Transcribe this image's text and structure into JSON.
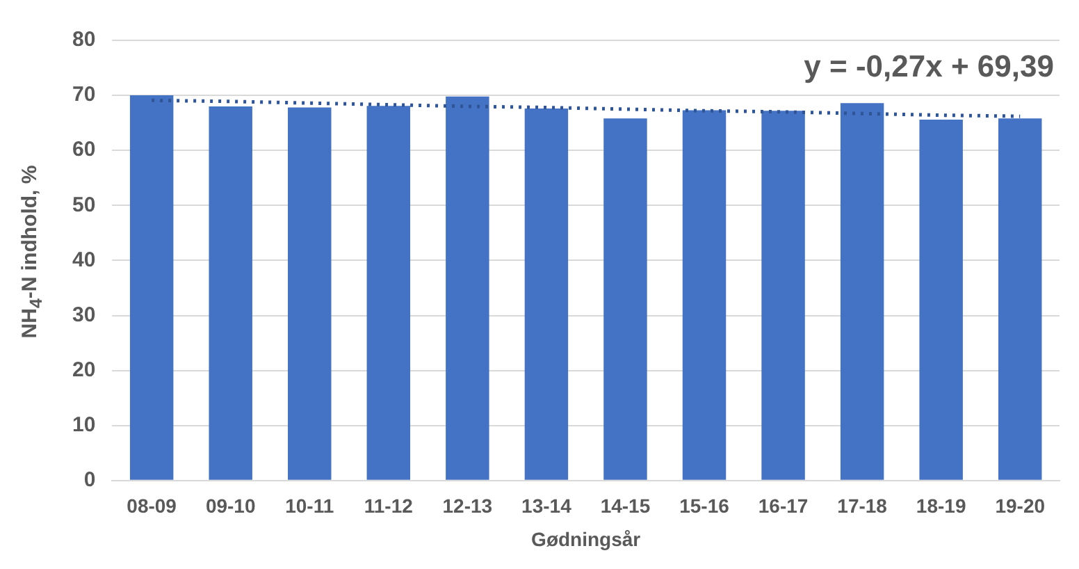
{
  "chart_data": {
    "type": "bar",
    "xlabel": "Gødningsår",
    "ylabel": "NH$_{4}$-N indhold, %",
    "categories": [
      "08-09",
      "09-10",
      "10-11",
      "11-12",
      "12-13",
      "13-14",
      "14-15",
      "15-16",
      "16-17",
      "17-18",
      "18-19",
      "19-20"
    ],
    "series": [
      {
        "type": "bar",
        "color": "#4472c4",
        "values": [
          70.0,
          68.0,
          67.8,
          68.1,
          69.8,
          67.6,
          65.8,
          67.3,
          67.2,
          68.6,
          65.6,
          65.8
        ]
      },
      {
        "type": "line",
        "color": "#2f5597",
        "line_style": "dotted",
        "marker": "none",
        "values": [
          69.1,
          68.9,
          68.6,
          68.3,
          68.0,
          67.8,
          67.5,
          67.2,
          67.0,
          66.7,
          66.4,
          66.2
        ]
      }
    ],
    "annotations": [
      "y = -0,27x + 69,39"
    ],
    "ylim": [
      0,
      80
    ],
    "yticks": [
      0,
      10,
      20,
      30,
      40,
      50,
      60,
      70,
      80
    ],
    "grid": "y",
    "legend": false
  }
}
